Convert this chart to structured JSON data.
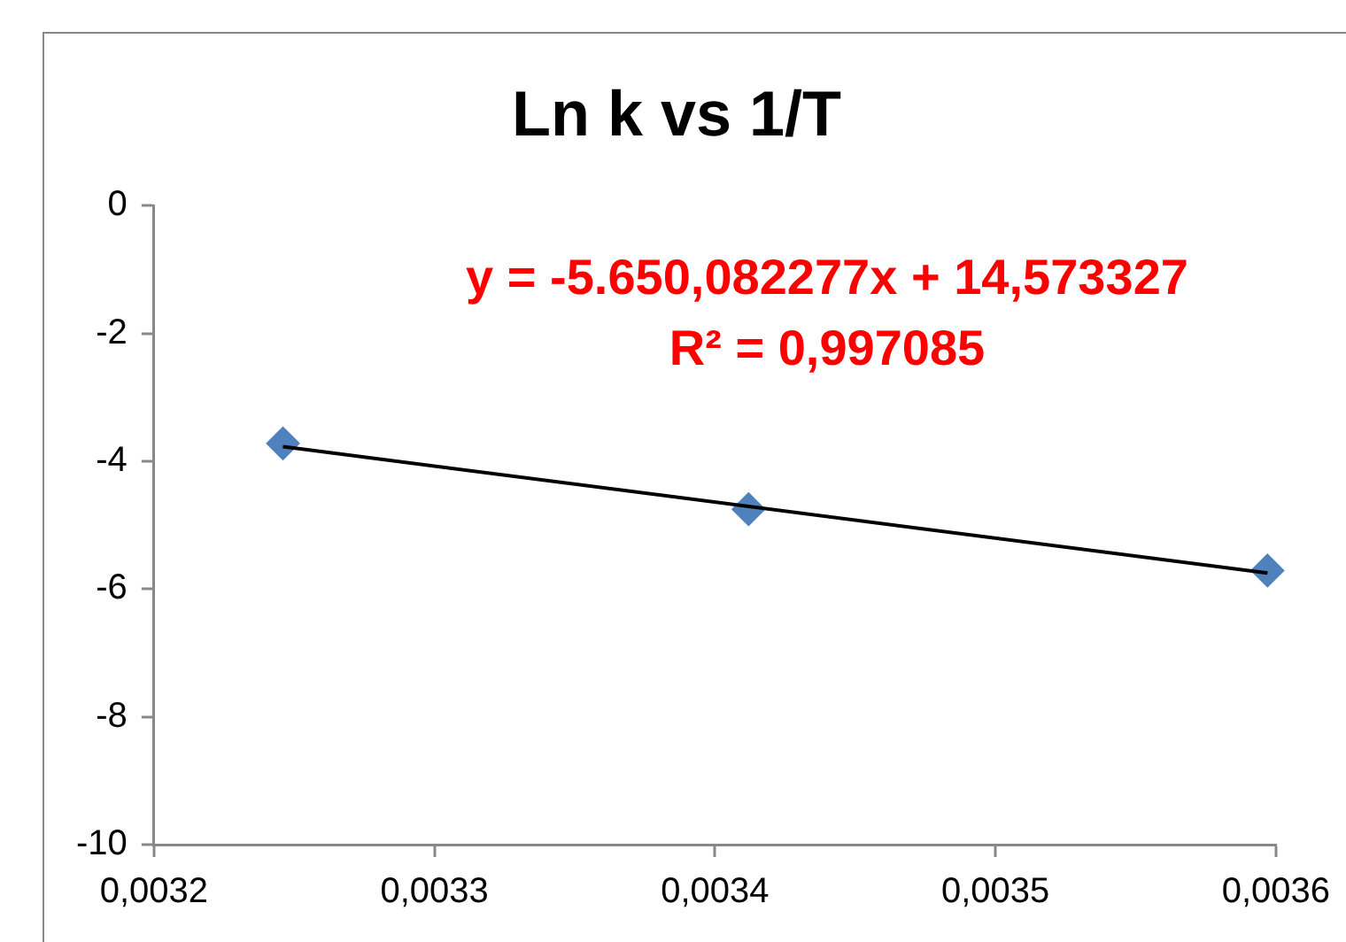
{
  "chart_data": {
    "type": "scatter",
    "title": "Ln k vs 1/T",
    "x": [
      0.003246,
      0.003412,
      0.003597
    ],
    "series": [
      {
        "color": "#4f81bd",
        "values": [
          -3.72,
          -4.75,
          -5.71
        ],
        "marker": "diamond"
      },
      {
        "type": "line",
        "color": "#000000",
        "x": [
          0.003246,
          0.003597
        ],
        "values": [
          -3.77,
          -5.75
        ],
        "marker": "none",
        "line_style": "solid"
      }
    ],
    "xlim": [
      0.0032,
      0.0036
    ],
    "xticks": [
      {
        "value": 0.0032,
        "label": "0,0032"
      },
      {
        "value": 0.0033,
        "label": "0,0033"
      },
      {
        "value": 0.0034,
        "label": "0,0034"
      },
      {
        "value": 0.0035,
        "label": "0,0035"
      },
      {
        "value": 0.0036,
        "label": "0,0036"
      }
    ],
    "ylim": [
      -10,
      0
    ],
    "yticks": [
      -10,
      -8,
      -6,
      -4,
      -2,
      0
    ],
    "annotations": [
      "y = -5.650,082277x + 14,573327",
      "R² = 0,997085"
    ],
    "grid": false,
    "legend": false
  }
}
